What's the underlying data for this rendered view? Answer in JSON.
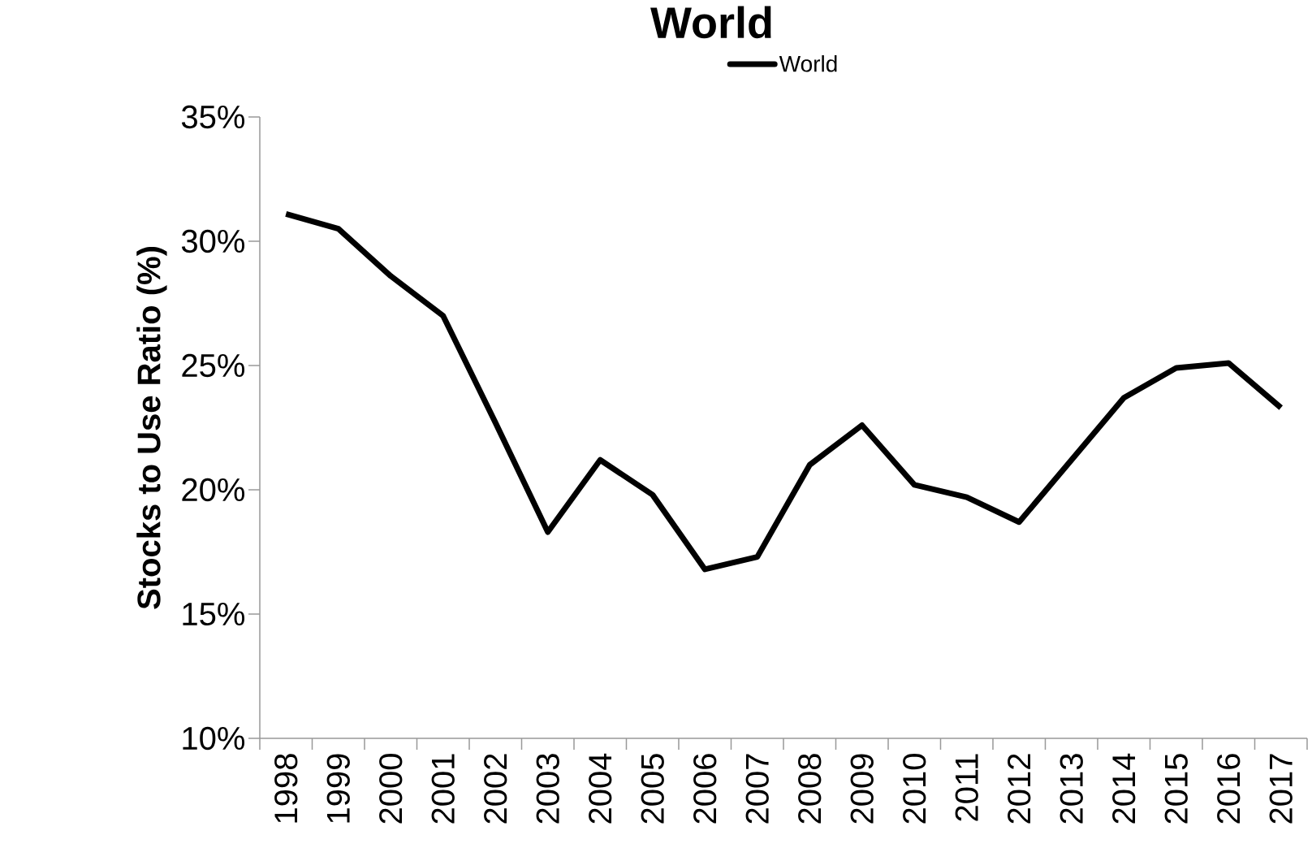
{
  "chart_data": {
    "type": "line",
    "title": "World",
    "ylabel": "Stocks to Use Ratio (%)",
    "categories": [
      "1998",
      "1999",
      "2000",
      "2001",
      "2002",
      "2003",
      "2004",
      "2005",
      "2006",
      "2007",
      "2008",
      "2009",
      "2010",
      "2011",
      "2012",
      "2013",
      "2014",
      "2015",
      "2016",
      "2017"
    ],
    "series": [
      {
        "name": "World",
        "color": "#000000",
        "values": [
          31.1,
          30.5,
          28.6,
          27.0,
          22.7,
          18.3,
          21.2,
          19.8,
          16.8,
          17.3,
          21.0,
          22.6,
          20.2,
          19.7,
          18.7,
          21.2,
          23.7,
          24.9,
          25.1,
          23.3
        ]
      }
    ],
    "ylim": [
      10,
      35
    ],
    "yticks": [
      {
        "value": 10,
        "label": "10%"
      },
      {
        "value": 15,
        "label": "15%"
      },
      {
        "value": 20,
        "label": "20%"
      },
      {
        "value": 25,
        "label": "25%"
      },
      {
        "value": 30,
        "label": "30%"
      },
      {
        "value": 35,
        "label": "35%"
      }
    ],
    "legend": "top",
    "marker": "none",
    "line_style": "solid"
  }
}
